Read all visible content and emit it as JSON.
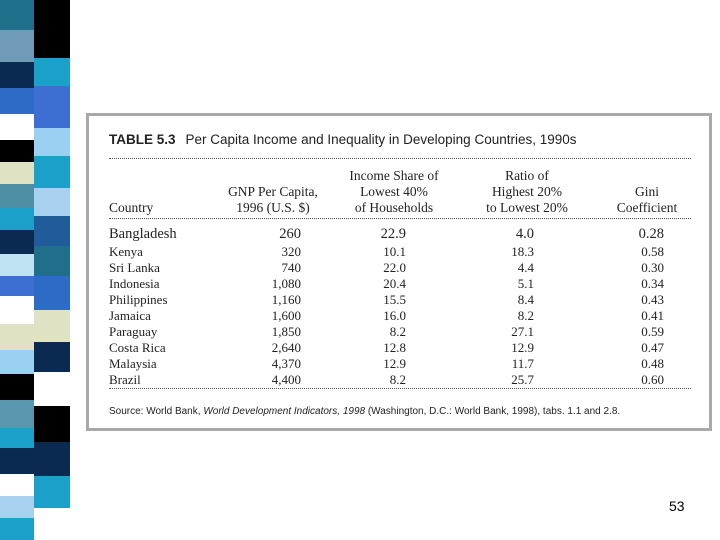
{
  "colors": {
    "strip": [
      "#1f6f8b",
      "#6f9bb8",
      "#0b2a52",
      "#2d6bc7",
      "#ffffff",
      "#000000",
      "#dfe3c4",
      "#4e8fa6",
      "#1aa0c9",
      "#0b2a52",
      "#bfe3f2",
      "#3c6fd1",
      "#ffffff",
      "#dfe3c4",
      "#9bd0f2",
      "#000000",
      "#5a96ad",
      "#1aa0c9",
      "#0b2a52",
      "#ffffff",
      "#a7d1ee",
      "#1aa0c9",
      "#dfe3c4",
      "#1f5c99",
      "#ffffff",
      "#2d6bc7"
    ],
    "frame": "#a9a9a9"
  },
  "table": {
    "label": "TABLE 5.3",
    "title": "Per Capita Income and Inequality in Developing Countries, 1990s",
    "headers": [
      [
        "Country"
      ],
      [
        "GNP Per Capita,",
        "1996 (U.S. $)"
      ],
      [
        "Income Share of",
        "Lowest 40%",
        "of Households"
      ],
      [
        "Ratio of",
        "Highest 20%",
        "to Lowest 20%"
      ],
      [
        "Gini",
        "Coefficient"
      ]
    ],
    "rows": [
      {
        "country": "Bangladesh",
        "gnp": "260",
        "share": "22.9",
        "ratio": "4.0",
        "gini": "0.28"
      },
      {
        "country": "Kenya",
        "gnp": "320",
        "share": "10.1",
        "ratio": "18.3",
        "gini": "0.58"
      },
      {
        "country": "Sri Lanka",
        "gnp": "740",
        "share": "22.0",
        "ratio": "4.4",
        "gini": "0.30"
      },
      {
        "country": "Indonesia",
        "gnp": "1,080",
        "share": "20.4",
        "ratio": "5.1",
        "gini": "0.34"
      },
      {
        "country": "Philippines",
        "gnp": "1,160",
        "share": "15.5",
        "ratio": "8.4",
        "gini": "0.43"
      },
      {
        "country": "Jamaica",
        "gnp": "1,600",
        "share": "16.0",
        "ratio": "8.2",
        "gini": "0.41"
      },
      {
        "country": "Paraguay",
        "gnp": "1,850",
        "share": "8.2",
        "ratio": "27.1",
        "gini": "0.59"
      },
      {
        "country": "Costa Rica",
        "gnp": "2,640",
        "share": "12.8",
        "ratio": "12.9",
        "gini": "0.47"
      },
      {
        "country": "Malaysia",
        "gnp": "4,370",
        "share": "12.9",
        "ratio": "11.7",
        "gini": "0.48"
      },
      {
        "country": "Brazil",
        "gnp": "4,400",
        "share": "8.2",
        "ratio": "25.7",
        "gini": "0.60"
      }
    ],
    "source_prefix": "Source: World Bank, ",
    "source_italic": "World Development Indicators, 1998",
    "source_suffix": " (Washington, D.C.: World Bank, 1998), tabs. 1.1 and 2.8."
  },
  "page_number": "53"
}
